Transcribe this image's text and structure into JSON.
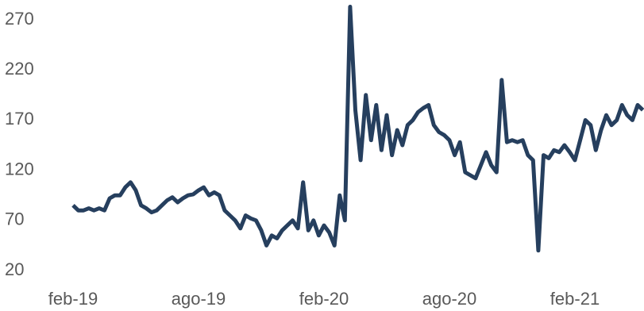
{
  "chart_data": {
    "type": "line",
    "categories": [
      "feb-19",
      null,
      null,
      null,
      null,
      null,
      null,
      null,
      null,
      null,
      null,
      null,
      null,
      null,
      null,
      null,
      null,
      null,
      null,
      null,
      null,
      null,
      null,
      null,
      "ago-19",
      null,
      null,
      null,
      null,
      null,
      null,
      null,
      null,
      null,
      null,
      null,
      null,
      null,
      null,
      null,
      null,
      null,
      null,
      null,
      null,
      null,
      null,
      null,
      "feb-20",
      null,
      null,
      null,
      null,
      null,
      null,
      null,
      null,
      null,
      null,
      null,
      null,
      null,
      null,
      null,
      null,
      null,
      null,
      null,
      null,
      null,
      null,
      null,
      "ago-20",
      null,
      null,
      null,
      null,
      null,
      null,
      null,
      null,
      null,
      null,
      null,
      null,
      null,
      null,
      null,
      null,
      null,
      null,
      null,
      null,
      null,
      null,
      null,
      "feb-21",
      null,
      null,
      null,
      null,
      null,
      null,
      null,
      null,
      null,
      null,
      null,
      null,
      null
    ],
    "series": [
      {
        "color": "#263f5e",
        "values": [
          85,
          80,
          80,
          82,
          80,
          82,
          80,
          92,
          95,
          95,
          103,
          108,
          100,
          85,
          82,
          78,
          80,
          85,
          90,
          93,
          88,
          92,
          95,
          96,
          100,
          103,
          95,
          98,
          95,
          80,
          75,
          70,
          62,
          75,
          72,
          70,
          60,
          45,
          55,
          52,
          60,
          65,
          70,
          62,
          108,
          60,
          70,
          55,
          65,
          58,
          45,
          95,
          70,
          283,
          180,
          130,
          195,
          150,
          185,
          140,
          175,
          135,
          160,
          145,
          165,
          170,
          178,
          182,
          185,
          165,
          158,
          155,
          150,
          135,
          148,
          118,
          115,
          112,
          125,
          138,
          125,
          118,
          210,
          148,
          150,
          148,
          150,
          135,
          130,
          40,
          135,
          132,
          140,
          138,
          145,
          138,
          130,
          150,
          170,
          165,
          140,
          160,
          175,
          165,
          170,
          185,
          175,
          170,
          185,
          180
        ]
      }
    ],
    "ylim": [
      20,
      285
    ],
    "yticks": [
      20,
      70,
      120,
      170,
      220,
      270
    ],
    "grid": false
  }
}
